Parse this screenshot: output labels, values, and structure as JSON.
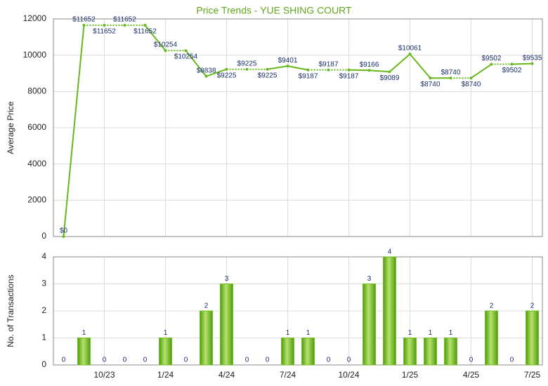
{
  "chart_data": [
    {
      "type": "line",
      "title": "Price Trends - YUE SHING COURT",
      "y_label": "Average Price",
      "values": [
        0,
        11652,
        11652,
        11652,
        11652,
        10254,
        10254,
        8838,
        9225,
        9225,
        9225,
        9401,
        9187,
        9187,
        9187,
        9166,
        9089,
        10061,
        8740,
        8740,
        8740,
        9502,
        9502,
        9535
      ],
      "value_labels": [
        "$0",
        "$11652",
        "$11652",
        "$11652",
        "$11652",
        "$10254",
        "$10254",
        "$8838",
        "$9225",
        "$9225",
        "$9225",
        "$9401",
        "$9187",
        "$9187",
        "$9187",
        "$9166",
        "$9089",
        "$10061",
        "$8740",
        "$8740",
        "$8740",
        "$9502",
        "$9502",
        "$9535"
      ],
      "color": "#66b81c",
      "ylim": [
        0,
        12000
      ],
      "yticks": [
        0,
        2000,
        4000,
        6000,
        8000,
        10000,
        12000
      ],
      "grid": true
    },
    {
      "type": "bar",
      "y_label": "No. of Transactions",
      "categories": [
        null,
        null,
        "10/23",
        null,
        null,
        "1/24",
        null,
        null,
        "4/24",
        null,
        null,
        "7/24",
        null,
        null,
        "10/24",
        null,
        null,
        "1/25",
        null,
        null,
        "4/25",
        null,
        null,
        "7/25"
      ],
      "values": [
        0,
        1,
        0,
        0,
        0,
        1,
        0,
        2,
        3,
        0,
        0,
        1,
        1,
        0,
        0,
        3,
        4,
        1,
        1,
        1,
        0,
        2,
        0,
        2
      ],
      "color": "#6fbf1f",
      "ylim": [
        0,
        4
      ],
      "yticks": [
        0,
        1,
        2,
        3,
        4
      ],
      "grid": true
    }
  ]
}
